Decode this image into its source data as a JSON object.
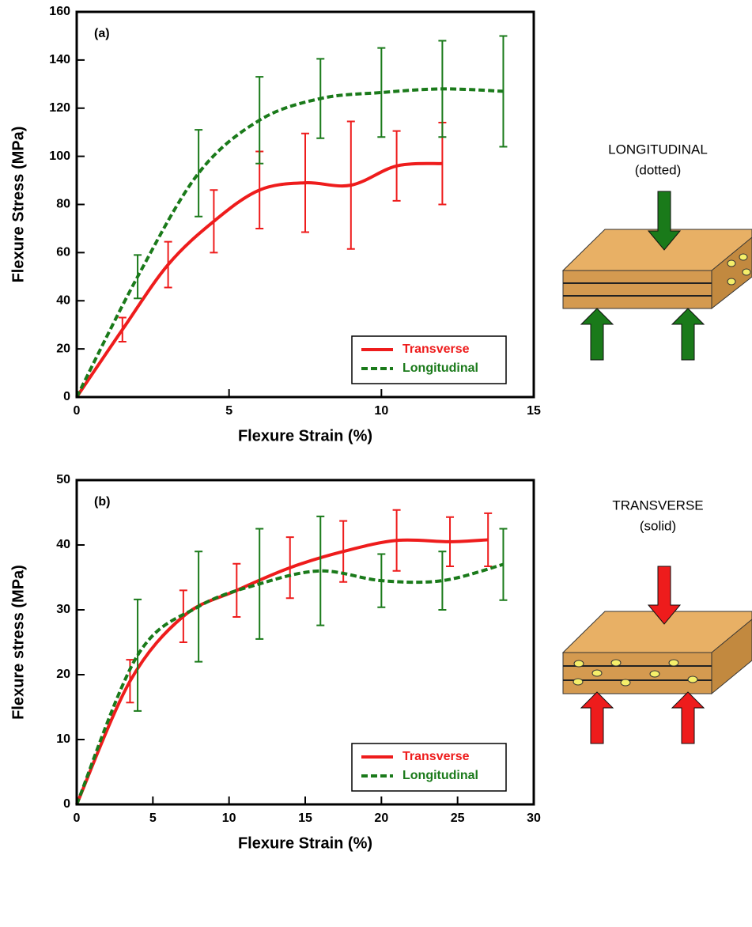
{
  "chart_data": [
    {
      "type": "line",
      "panel_label": "(a)",
      "x_label": "Flexure Strain (%)",
      "y_label": "Flexure Stress (MPa)",
      "xlim": [
        0,
        15
      ],
      "ylim": [
        0,
        160
      ],
      "xticks": [
        0,
        5,
        10,
        15
      ],
      "yticks": [
        0,
        20,
        40,
        60,
        80,
        100,
        120,
        140,
        160
      ],
      "legend": "lower right",
      "side_labels": [
        "LONGITUDINAL",
        "(dotted)"
      ],
      "series": [
        {
          "name": "Transverse",
          "color": "#ee1c1c",
          "dashed": false,
          "x": [
            0,
            1.5,
            3,
            4.5,
            6,
            7.5,
            9,
            10.5,
            12
          ],
          "values": [
            0,
            28,
            55,
            73,
            86,
            89,
            88,
            96,
            97
          ],
          "errors": [
            null,
            5,
            9.5,
            13,
            16,
            20.5,
            26.5,
            14.5,
            17
          ]
        },
        {
          "name": "Longitudinal",
          "color": "#1a7a1a",
          "dashed": true,
          "x": [
            0,
            2,
            4,
            6,
            8,
            10,
            12,
            14
          ],
          "values": [
            0,
            50,
            93,
            115,
            124,
            126.5,
            128,
            127
          ],
          "errors": [
            null,
            9,
            18,
            18,
            16.5,
            18.5,
            20,
            23
          ]
        }
      ]
    },
    {
      "type": "line",
      "panel_label": "(b)",
      "x_label": "Flexure Strain (%)",
      "y_label": "Flexure stress (MPa)",
      "xlim": [
        0,
        30
      ],
      "ylim": [
        0,
        50
      ],
      "xticks": [
        0,
        5,
        10,
        15,
        20,
        25,
        30
      ],
      "yticks": [
        0,
        10,
        20,
        30,
        40,
        50
      ],
      "legend": "lower right",
      "side_labels": [
        "TRANSVERSE",
        "(solid)"
      ],
      "series": [
        {
          "name": "Transverse",
          "color": "#ee1c1c",
          "dashed": false,
          "x": [
            0,
            3.5,
            7,
            10.5,
            14,
            17.5,
            21,
            24.5,
            27
          ],
          "values": [
            0,
            19,
            29,
            33,
            36.5,
            39,
            40.7,
            40.5,
            40.8
          ],
          "errors": [
            null,
            3.3,
            4,
            4.1,
            4.7,
            4.7,
            4.7,
            3.8,
            4.1
          ]
        },
        {
          "name": "Longitudinal",
          "color": "#1a7a1a",
          "dashed": true,
          "x": [
            0,
            4,
            8,
            12,
            16,
            20,
            24,
            28
          ],
          "values": [
            0,
            23,
            30.5,
            34,
            36,
            34.5,
            34.5,
            37
          ],
          "errors": [
            null,
            8.6,
            8.5,
            8.5,
            8.4,
            4.1,
            4.5,
            5.5
          ]
        }
      ]
    }
  ]
}
